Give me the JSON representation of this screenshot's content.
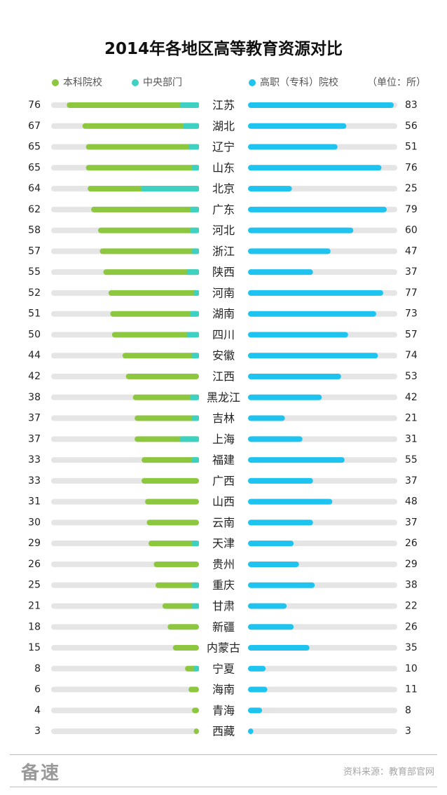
{
  "title": "2014年各地区高等教育资源对比",
  "legend": {
    "undergrad": "本科院校",
    "central": "中央部门",
    "vocational": "高职（专科）院校",
    "unit": "（单位：所）"
  },
  "colors": {
    "undergrad": "#8dc63f",
    "central": "#3ed1c1",
    "vocational": "#1ec3f0",
    "track": "#e5e5e5"
  },
  "chart_data": {
    "type": "bar",
    "categories": [
      "江苏",
      "湖北",
      "辽宁",
      "山东",
      "北京",
      "广东",
      "河北",
      "浙江",
      "陕西",
      "河南",
      "湖南",
      "四川",
      "安徽",
      "江西",
      "黑龙江",
      "吉林",
      "上海",
      "福建",
      "广西",
      "山西",
      "云南",
      "天津",
      "贵州",
      "重庆",
      "甘肃",
      "新疆",
      "内蒙古",
      "宁夏",
      "海南",
      "青海",
      "西藏"
    ],
    "series": [
      {
        "name": "本科院校",
        "values": [
          76,
          67,
          65,
          65,
          64,
          62,
          58,
          57,
          55,
          52,
          51,
          50,
          44,
          42,
          38,
          37,
          37,
          33,
          33,
          31,
          30,
          29,
          26,
          25,
          21,
          18,
          15,
          8,
          6,
          4,
          3
        ]
      },
      {
        "name": "中央部门",
        "values": [
          11,
          9,
          6,
          4,
          33,
          5,
          5,
          4,
          7,
          3,
          5,
          7,
          4,
          0,
          5,
          4,
          11,
          4,
          0,
          0,
          0,
          4,
          0,
          4,
          4,
          0,
          0,
          3,
          0,
          0,
          0
        ]
      },
      {
        "name": "高职（专科）院校",
        "values": [
          83,
          56,
          51,
          76,
          25,
          79,
          60,
          47,
          37,
          77,
          73,
          57,
          74,
          53,
          42,
          21,
          31,
          55,
          37,
          48,
          37,
          26,
          29,
          38,
          22,
          26,
          35,
          10,
          11,
          8,
          3
        ]
      }
    ],
    "xlim": [
      0,
      85
    ]
  },
  "footer": {
    "brand": "备速",
    "source": "资料来源：教育部官网"
  }
}
